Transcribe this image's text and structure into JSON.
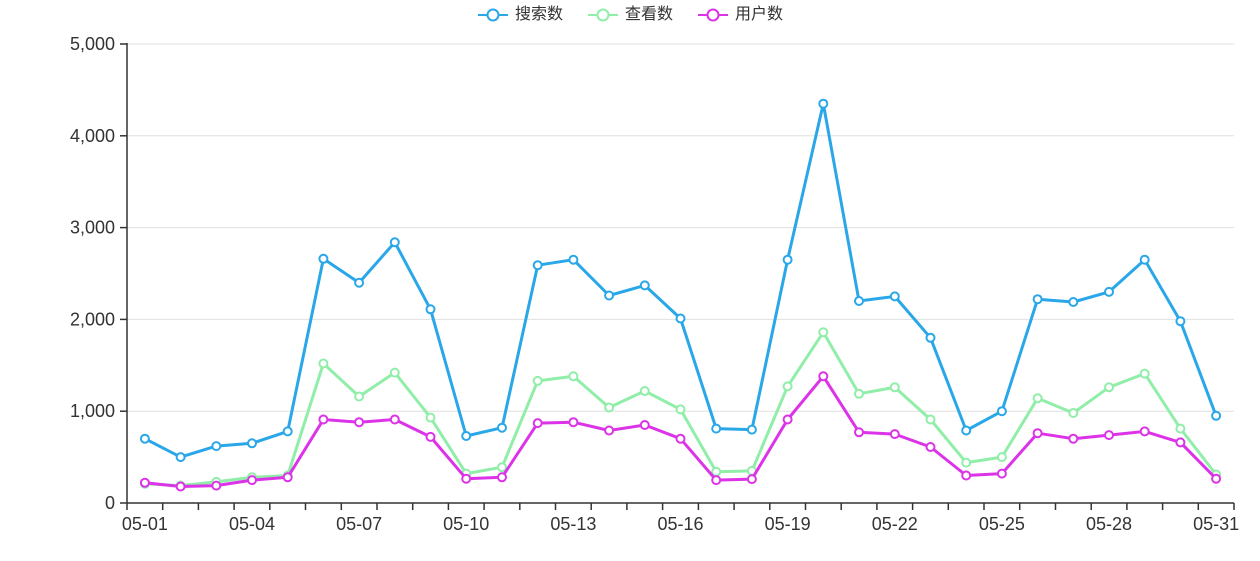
{
  "chart_data": {
    "type": "line",
    "title": "",
    "xlabel": "",
    "ylabel": "",
    "ylim": [
      0,
      5000
    ],
    "grid": true,
    "legend_position": "top-center",
    "axis_color": "#333333",
    "grid_color": "#e0e0e0",
    "label_color": "#333333",
    "marker_fill": "#ffffff",
    "yticks": [
      {
        "value": 0,
        "label": "0"
      },
      {
        "value": 1000,
        "label": "1,000"
      },
      {
        "value": 2000,
        "label": "2,000"
      },
      {
        "value": 3000,
        "label": "3,000"
      },
      {
        "value": 4000,
        "label": "4,000"
      },
      {
        "value": 5000,
        "label": "5,000"
      }
    ],
    "xtick_label_every": 3,
    "x": [
      "05-01",
      "05-02",
      "05-03",
      "05-04",
      "05-05",
      "05-06",
      "05-07",
      "05-08",
      "05-09",
      "05-10",
      "05-11",
      "05-12",
      "05-13",
      "05-14",
      "05-15",
      "05-16",
      "05-17",
      "05-18",
      "05-19",
      "05-20",
      "05-21",
      "05-22",
      "05-23",
      "05-24",
      "05-25",
      "05-26",
      "05-27",
      "05-28",
      "05-29",
      "05-30",
      "05-31"
    ],
    "series": [
      {
        "name": "搜索数",
        "color": "#29a7e8",
        "values": [
          700,
          500,
          620,
          650,
          780,
          2660,
          2400,
          2840,
          2110,
          730,
          820,
          2590,
          2650,
          2260,
          2370,
          2010,
          810,
          800,
          2650,
          4350,
          2200,
          2250,
          1800,
          790,
          1000,
          2220,
          2190,
          2300,
          2650,
          1980,
          950
        ]
      },
      {
        "name": "查看数",
        "color": "#90eea8",
        "values": [
          210,
          190,
          230,
          280,
          300,
          1520,
          1160,
          1420,
          930,
          320,
          390,
          1330,
          1380,
          1040,
          1220,
          1020,
          340,
          350,
          1270,
          1860,
          1190,
          1260,
          910,
          440,
          500,
          1140,
          980,
          1260,
          1410,
          810,
          310
        ]
      },
      {
        "name": "用户数",
        "color": "#dc33e8",
        "values": [
          220,
          180,
          190,
          250,
          280,
          910,
          880,
          910,
          720,
          265,
          280,
          870,
          880,
          790,
          850,
          700,
          250,
          260,
          910,
          1380,
          770,
          750,
          610,
          300,
          320,
          760,
          700,
          740,
          780,
          660,
          265
        ]
      }
    ]
  }
}
